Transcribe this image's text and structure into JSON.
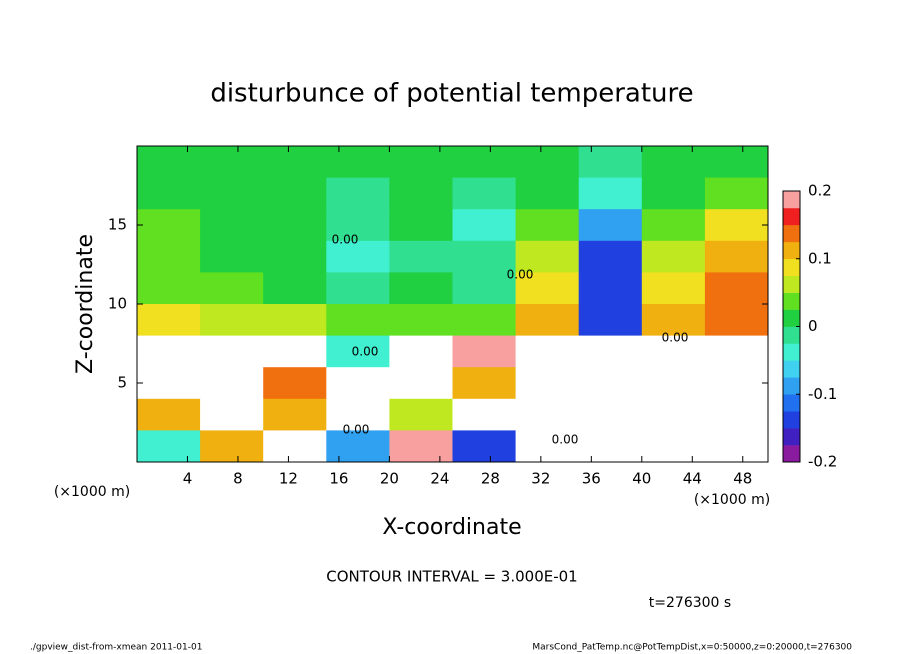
{
  "chart_data": {
    "type": "heatmap",
    "title": "disturbunce of potential temperature",
    "x_label": "X-coordinate",
    "y_label": "Z-coordinate",
    "x_unit": "(×1000 m)",
    "contour_interval": "CONTOUR INTERVAL = 3.000E-01",
    "time_label": "t=276300 s",
    "footer_left": "./gpview_dist-from-xmean  2011-01-01",
    "footer_right": "MarsCond_PatTemp.nc@PotTempDist,x=0:50000,z=0:20000,t=276300",
    "contour_labels": [
      "0.00",
      "0.00",
      "0.00",
      "0.00",
      "0.00",
      "0.00"
    ],
    "xlim": [
      0,
      50
    ],
    "xticks": [
      4,
      8,
      12,
      16,
      20,
      24,
      28,
      32,
      36,
      40,
      44,
      48
    ],
    "ylim": [
      0,
      20
    ],
    "yticks": [
      5,
      10,
      15
    ],
    "clim": [
      -0.2,
      0.2
    ],
    "cticks": [
      -0.2,
      -0.1,
      0,
      0.1,
      0.2
    ],
    "colors": [
      "#8a1a9e",
      "#4020c0",
      "#2040e0",
      "#2070f0",
      "#30a0f0",
      "#40d0f0",
      "#40f0d0",
      "#30e090",
      "#20d040",
      "#60e020",
      "#c0e820",
      "#f0e020",
      "#f0b010",
      "#f07010",
      "#f02020",
      "#f8a0a0"
    ],
    "x": [
      2.5,
      7.5,
      12.5,
      17.5,
      22.5,
      27.5,
      32.5,
      37.5,
      42.5,
      47.5
    ],
    "y": [
      19,
      17,
      15,
      13,
      11,
      9,
      7,
      5,
      3,
      1
    ],
    "z": [
      [
        0.01,
        0.01,
        0,
        0,
        0.01,
        0,
        0,
        -0.02,
        0,
        0.01
      ],
      [
        0.02,
        0,
        0,
        -0.01,
        0,
        -0.02,
        0,
        -0.05,
        0.01,
        0.04
      ],
      [
        0.03,
        0.01,
        0,
        -0.02,
        0,
        -0.04,
        0.03,
        -0.1,
        0.04,
        0.08
      ],
      [
        0.03,
        0.02,
        0,
        -0.03,
        -0.02,
        -0.02,
        0.06,
        -0.13,
        0.06,
        0.11
      ],
      [
        0.04,
        0.03,
        0.02,
        -0.01,
        0,
        -0.01,
        0.08,
        -0.14,
        0.08,
        0.13
      ],
      [
        0.08,
        0.06,
        0.05,
        0.03,
        0.04,
        0.03,
        0.1,
        -0.15,
        0.1,
        0.15
      ],
      [
        0.3,
        0.3,
        0.25,
        -0.05,
        0.3,
        0.2,
        -0.3,
        -0.3,
        -0.3,
        0.3
      ],
      [
        0.3,
        0.3,
        0.15,
        0.3,
        0.3,
        0.1,
        0.3,
        -0.3,
        -0.3,
        0.3
      ],
      [
        0.1,
        0.3,
        0.12,
        0.3,
        0.05,
        0.3,
        -0.3,
        0.3,
        -0.3,
        0.3
      ],
      [
        -0.05,
        0.12,
        0.3,
        -0.1,
        0.2,
        -0.15,
        0.3,
        0.3,
        0.3,
        0.3
      ]
    ]
  }
}
